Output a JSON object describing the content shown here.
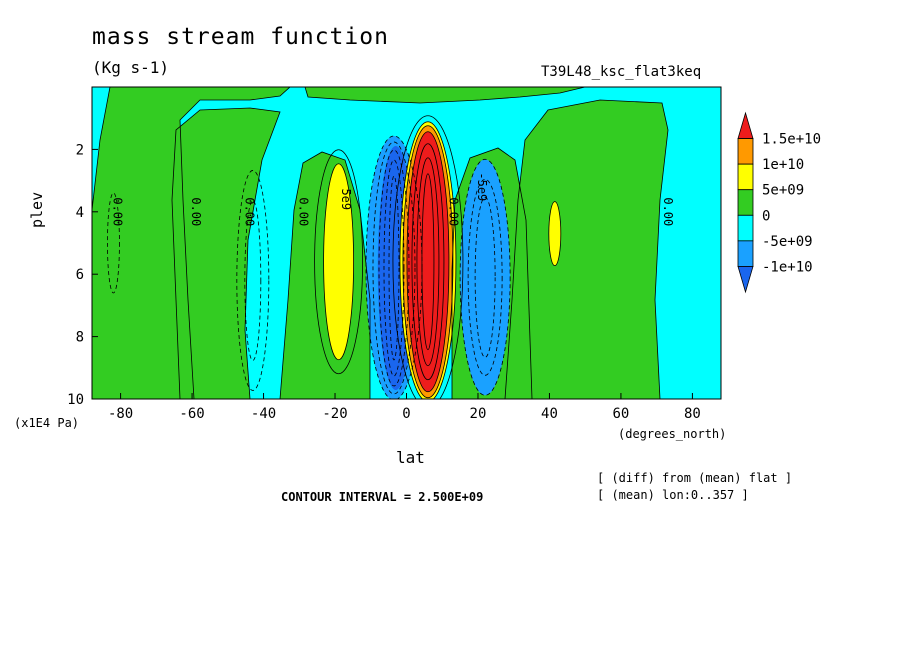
{
  "title": "mass stream function",
  "units": "(Kg s-1)",
  "run_label": "T39L48_ksc_flat3keq",
  "notes": [
    "[ (diff) from (mean) flat ]",
    "[ (mean) lon:0..357 ]"
  ],
  "contour_interval_text": "CONTOUR INTERVAL = 2.500E+09",
  "colors": {
    "red": "#ee1c1c",
    "orange": "#ff9900",
    "yellow": "#ffff00",
    "green": "#33cc22",
    "cyan": "#00ffff",
    "blue": "#1aa1ff",
    "deep_blue": "#1a66ee"
  },
  "chart_data": {
    "type": "heatmap",
    "xlabel": "lat",
    "ylabel": "plev",
    "x_unit": "(degrees_north)",
    "y_unit": "(x1E4 Pa)",
    "xlim": [
      -88,
      88
    ],
    "ylim": [
      10,
      0
    ],
    "xticks": [
      -80,
      -60,
      -40,
      -20,
      0,
      20,
      40,
      60,
      80
    ],
    "yticks": [
      2,
      4,
      6,
      8,
      10
    ],
    "contour_interval": 2500000000,
    "colorbar": {
      "labels": [
        "1.5e+10",
        "1e+10",
        "5e+09",
        "0",
        "-5e+09",
        "-1e+10"
      ],
      "bins": [
        {
          "range": ">1.5e+10",
          "color": "red"
        },
        {
          "range": "1e+10 to 1.5e+10",
          "color": "orange"
        },
        {
          "range": "5e+09 to 1e+10",
          "color": "yellow"
        },
        {
          "range": "0 to 5e+09",
          "color": "green"
        },
        {
          "range": "-5e+09 to 0",
          "color": "cyan"
        },
        {
          "range": "-1e+10 to -5e+09",
          "color": "blue"
        },
        {
          "range": "<-1e+10",
          "color": "deep_blue"
        }
      ]
    },
    "contour_labels": [
      {
        "text": "0.00",
        "lat": -82,
        "plev": 4.0
      },
      {
        "text": "0.00",
        "lat": -60,
        "plev": 4.0
      },
      {
        "text": "0.00",
        "lat": -45,
        "plev": 4.0
      },
      {
        "text": "0.00",
        "lat": -30,
        "plev": 4.0
      },
      {
        "text": "5e9",
        "lat": -18,
        "plev": 3.6
      },
      {
        "text": "0.00",
        "lat": 12,
        "plev": 4.0
      },
      {
        "text": "-5e9",
        "lat": 20,
        "plev": 3.2
      },
      {
        "text": "0.00",
        "lat": 72,
        "plev": 4.0
      }
    ],
    "extrema": [
      {
        "sign": "positive",
        "lat_center": 6,
        "plev_center": 5.5,
        "max_level": ">1.5e+10"
      },
      {
        "sign": "negative",
        "lat_center": -4,
        "plev_center": 5.5,
        "min_level": "<-1e+10"
      },
      {
        "sign": "negative",
        "lat_center": 22,
        "plev_center": 6.0,
        "min_level": "-1e+10"
      },
      {
        "sign": "positive",
        "lat_center": -19,
        "plev_center": 5.5,
        "max_level": "1e+10"
      },
      {
        "sign": "positive",
        "lat_center": 41,
        "plev_center": 4.5,
        "max_level": "1e+10"
      }
    ]
  }
}
